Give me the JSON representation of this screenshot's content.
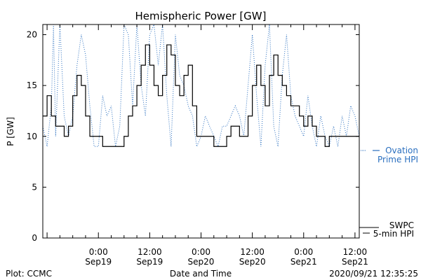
{
  "chart_data": {
    "type": "line",
    "title": "Hemispheric Power [GW]",
    "ylabel": "P [GW]",
    "xlabel": "Date and Time",
    "ylim": [
      0,
      21
    ],
    "xlim": [
      "2020-09-18T11:00",
      "2020-09-21T13:00"
    ],
    "yticks": [
      0,
      5,
      10,
      15,
      20
    ],
    "xticks": [
      {
        "at": "2020-09-19T00:00",
        "time": "0:00",
        "date": "Sep19"
      },
      {
        "at": "2020-09-19T12:00",
        "time": "12:00",
        "date": "Sep19"
      },
      {
        "at": "2020-09-20T00:00",
        "time": "0:00",
        "date": "Sep20"
      },
      {
        "at": "2020-09-20T12:00",
        "time": "12:00",
        "date": "Sep20"
      },
      {
        "at": "2020-09-21T00:00",
        "time": "0:00",
        "date": "Sep21"
      },
      {
        "at": "2020-09-21T12:00",
        "time": "12:00",
        "date": "Sep21"
      }
    ],
    "series": [
      {
        "name": "SWPC 5-min HPI",
        "legend_line1": "SWPC",
        "legend_line2": "5-min HPI",
        "color": "#000000",
        "style": "solid",
        "x": [
          "2020-09-18T11:00",
          "2020-09-18T12:00",
          "2020-09-18T13:00",
          "2020-09-18T14:00",
          "2020-09-18T16:00",
          "2020-09-18T17:00",
          "2020-09-18T18:00",
          "2020-09-18T19:00",
          "2020-09-18T20:00",
          "2020-09-18T21:00",
          "2020-09-18T22:00",
          "2020-09-19T01:00",
          "2020-09-19T02:00",
          "2020-09-19T03:00",
          "2020-09-19T05:00",
          "2020-09-19T06:00",
          "2020-09-19T07:00",
          "2020-09-19T08:00",
          "2020-09-19T09:00",
          "2020-09-19T10:00",
          "2020-09-19T11:00",
          "2020-09-19T12:00",
          "2020-09-19T13:00",
          "2020-09-19T14:00",
          "2020-09-19T15:00",
          "2020-09-19T16:00",
          "2020-09-19T17:00",
          "2020-09-19T18:00",
          "2020-09-19T19:00",
          "2020-09-19T20:00",
          "2020-09-19T21:00",
          "2020-09-19T22:00",
          "2020-09-19T23:00",
          "2020-09-20T02:00",
          "2020-09-20T03:00",
          "2020-09-20T05:00",
          "2020-09-20T06:00",
          "2020-09-20T07:00",
          "2020-09-20T09:00",
          "2020-09-20T10:00",
          "2020-09-20T11:00",
          "2020-09-20T12:00",
          "2020-09-20T13:00",
          "2020-09-20T14:00",
          "2020-09-20T15:00",
          "2020-09-20T16:00",
          "2020-09-20T17:00",
          "2020-09-20T18:00",
          "2020-09-20T19:00",
          "2020-09-20T20:00",
          "2020-09-20T21:00",
          "2020-09-20T22:00",
          "2020-09-20T23:00",
          "2020-09-21T00:00",
          "2020-09-21T01:00",
          "2020-09-21T02:00",
          "2020-09-21T03:00",
          "2020-09-21T04:00",
          "2020-09-21T05:00",
          "2020-09-21T06:00",
          "2020-09-21T08:00",
          "2020-09-21T13:00"
        ],
        "y": [
          12,
          14,
          12,
          11,
          10,
          11,
          14,
          16,
          15,
          12,
          10,
          9,
          9,
          9,
          9,
          10,
          12,
          13,
          15,
          17,
          19,
          17,
          15,
          14,
          16,
          19,
          18,
          15,
          14,
          16,
          17,
          13,
          10,
          10,
          9,
          9,
          10,
          11,
          10,
          10,
          12,
          15,
          17,
          15,
          13,
          16,
          18,
          16,
          15,
          14,
          13,
          13,
          12,
          11,
          12,
          11,
          10,
          10,
          9,
          10,
          10,
          10
        ]
      },
      {
        "name": "Ovation Prime HPI",
        "legend_line1": "Ovation",
        "legend_line2": "Prime HPI",
        "color": "#2a6fbf",
        "style": "dotted",
        "x": [
          "2020-09-18T11:00",
          "2020-09-18T12:00",
          "2020-09-18T13:00",
          "2020-09-18T13:30",
          "2020-09-18T14:00",
          "2020-09-18T15:00",
          "2020-09-18T16:00",
          "2020-09-18T17:00",
          "2020-09-18T18:00",
          "2020-09-18T19:00",
          "2020-09-18T20:00",
          "2020-09-18T21:00",
          "2020-09-18T22:00",
          "2020-09-18T23:00",
          "2020-09-19T00:00",
          "2020-09-19T01:00",
          "2020-09-19T02:00",
          "2020-09-19T03:00",
          "2020-09-19T04:00",
          "2020-09-19T05:00",
          "2020-09-19T06:00",
          "2020-09-19T07:00",
          "2020-09-19T08:00",
          "2020-09-19T09:00",
          "2020-09-19T10:00",
          "2020-09-19T11:00",
          "2020-09-19T12:00",
          "2020-09-19T13:00",
          "2020-09-19T14:00",
          "2020-09-19T15:00",
          "2020-09-19T16:00",
          "2020-09-19T17:00",
          "2020-09-19T18:00",
          "2020-09-19T19:00",
          "2020-09-19T20:00",
          "2020-09-19T21:00",
          "2020-09-19T22:00",
          "2020-09-19T23:00",
          "2020-09-20T00:00",
          "2020-09-20T01:00",
          "2020-09-20T02:00",
          "2020-09-20T03:00",
          "2020-09-20T04:00",
          "2020-09-20T05:00",
          "2020-09-20T06:00",
          "2020-09-20T07:00",
          "2020-09-20T08:00",
          "2020-09-20T09:00",
          "2020-09-20T10:00",
          "2020-09-20T11:00",
          "2020-09-20T12:00",
          "2020-09-20T13:00",
          "2020-09-20T14:00",
          "2020-09-20T15:00",
          "2020-09-20T16:00",
          "2020-09-20T17:00",
          "2020-09-20T18:00",
          "2020-09-20T19:00",
          "2020-09-20T20:00",
          "2020-09-20T21:00",
          "2020-09-20T22:00",
          "2020-09-20T23:00",
          "2020-09-21T00:00",
          "2020-09-21T01:00",
          "2020-09-21T02:00",
          "2020-09-21T03:00",
          "2020-09-21T04:00",
          "2020-09-21T05:00",
          "2020-09-21T06:00",
          "2020-09-21T07:00",
          "2020-09-21T08:00",
          "2020-09-21T09:00",
          "2020-09-21T10:00",
          "2020-09-21T11:00",
          "2020-09-21T12:00",
          "2020-09-21T13:00"
        ],
        "y": [
          11,
          9,
          13,
          21,
          10,
          21,
          12,
          10,
          12,
          17,
          20,
          18,
          13,
          9,
          9,
          14,
          12,
          13,
          9,
          11,
          21,
          20,
          13,
          21,
          15,
          12,
          20,
          21,
          17,
          21,
          14,
          9,
          20,
          16,
          15,
          13,
          12,
          9,
          10,
          12,
          11,
          10,
          9,
          11,
          11,
          12,
          13,
          12,
          10,
          15,
          20,
          14,
          9,
          17,
          21,
          11,
          9,
          16,
          20,
          14,
          12,
          11,
          10,
          14,
          11,
          9,
          12,
          10,
          9,
          11,
          9,
          12,
          10,
          13,
          12,
          10
        ]
      }
    ]
  },
  "footer": {
    "left": "Plot: CCMC",
    "timestamp": "2020/09/21 12:35:25"
  }
}
